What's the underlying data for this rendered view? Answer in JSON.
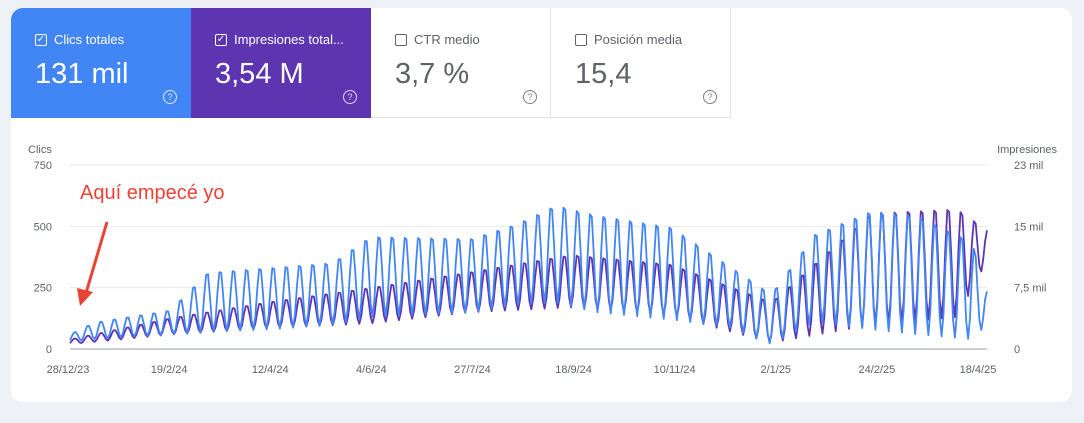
{
  "metrics": [
    {
      "label": "Clics totales",
      "value": "131 mil",
      "checked": true,
      "color": "#4285f4"
    },
    {
      "label": "Impresiones total...",
      "value": "3,54 M",
      "checked": true,
      "color": "#5e35b1"
    },
    {
      "label": "CTR medio",
      "value": "3,7 %",
      "checked": false
    },
    {
      "label": "Posición media",
      "value": "15,4",
      "checked": false
    }
  ],
  "help_glyph": "?",
  "check_glyph": "✓",
  "annotation": "Aquí empecé yo",
  "chart_data": {
    "type": "line",
    "xlabel": "",
    "ylabel_left": "Clics",
    "ylabel_right": "Impresiones",
    "y_left_ticks": [
      "0",
      "250",
      "500",
      "750"
    ],
    "y_left_range": [
      0,
      750
    ],
    "y_right_ticks": [
      "0",
      "7,5 mil",
      "15 mil",
      "23 mil"
    ],
    "y_right_range": [
      0,
      23000
    ],
    "x_tick_labels": [
      "28/12/23",
      "19/2/24",
      "12/4/24",
      "4/6/24",
      "27/7/24",
      "18/9/24",
      "10/11/24",
      "2/1/25",
      "24/2/25",
      "18/4/25"
    ],
    "x_range": [
      "2023-12-28",
      "2025-04-26"
    ],
    "series": [
      {
        "name": "Clics",
        "axis": "left",
        "color": "#4285f4",
        "keyframes": [
          {
            "d": "2023-12-28",
            "low": 30,
            "high": 60
          },
          {
            "d": "2024-01-10",
            "low": 40,
            "high": 110
          },
          {
            "d": "2024-02-19",
            "low": 60,
            "high": 160
          },
          {
            "d": "2024-03-10",
            "low": 70,
            "high": 320
          },
          {
            "d": "2024-04-12",
            "low": 80,
            "high": 340
          },
          {
            "d": "2024-05-15",
            "low": 100,
            "high": 360
          },
          {
            "d": "2024-06-04",
            "low": 130,
            "high": 470
          },
          {
            "d": "2024-07-27",
            "low": 150,
            "high": 460
          },
          {
            "d": "2024-08-20",
            "low": 180,
            "high": 520
          },
          {
            "d": "2024-09-10",
            "low": 190,
            "high": 600
          },
          {
            "d": "2024-10-01",
            "low": 150,
            "high": 560
          },
          {
            "d": "2024-11-10",
            "low": 120,
            "high": 510
          },
          {
            "d": "2024-12-10",
            "low": 90,
            "high": 350
          },
          {
            "d": "2025-01-02",
            "low": 20,
            "high": 230
          },
          {
            "d": "2025-01-25",
            "low": 110,
            "high": 480
          },
          {
            "d": "2025-02-24",
            "low": 80,
            "high": 580
          },
          {
            "d": "2025-03-20",
            "low": 60,
            "high": 560
          },
          {
            "d": "2025-04-18",
            "low": 40,
            "high": 450
          },
          {
            "d": "2025-04-26",
            "low": 100,
            "high": 240
          }
        ]
      },
      {
        "name": "Impresiones",
        "axis": "right",
        "color": "#5e35b1",
        "keyframes": [
          {
            "d": "2023-12-28",
            "low": 600,
            "high": 1200
          },
          {
            "d": "2024-02-19",
            "low": 1800,
            "high": 3900
          },
          {
            "d": "2024-04-12",
            "low": 2600,
            "high": 6000
          },
          {
            "d": "2024-06-04",
            "low": 3200,
            "high": 7800
          },
          {
            "d": "2024-07-27",
            "low": 4600,
            "high": 9800
          },
          {
            "d": "2024-09-18",
            "low": 5200,
            "high": 12000
          },
          {
            "d": "2024-11-10",
            "low": 4200,
            "high": 10800
          },
          {
            "d": "2025-01-02",
            "low": 800,
            "high": 6000
          },
          {
            "d": "2025-02-24",
            "low": 3000,
            "high": 17500
          },
          {
            "d": "2025-04-10",
            "low": 4000,
            "high": 18000
          },
          {
            "d": "2025-04-26",
            "low": 11000,
            "high": 15000
          }
        ]
      }
    ]
  }
}
